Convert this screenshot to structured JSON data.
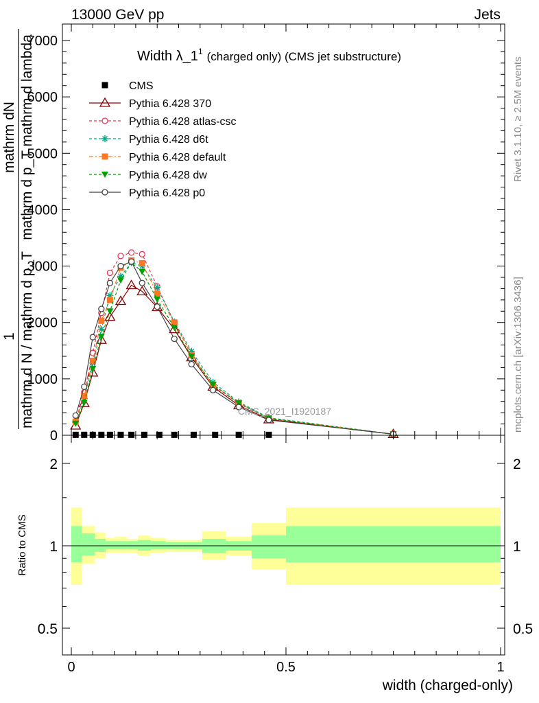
{
  "header": {
    "left": "13000 GeV pp",
    "right": "Jets"
  },
  "side_labels": {
    "rivet": "Rivet 3.1.10, ≥ 2.5M events",
    "mcplots": "mcplots.cern.ch [arXiv:1306.3436]"
  },
  "colors": {
    "ratio_inner_band": "#99ff99",
    "ratio_outer_band": "#ffff99"
  },
  "chart_data": [
    {
      "type": "line",
      "title_main": "Width λ_1",
      "title_sup": "1",
      "title_rest": "(charged only) (CMS jet substructure)",
      "watermark": "CMS_2021_I1920187",
      "ylabel_top_numerator": "mathrm dN",
      "ylabel_top_denominator": "mathrm d p_T mathrm d lambda",
      "ylabel_prefix_numerator": "1",
      "ylabel_prefix_denominator": "mathrm d N / mathrm d p_T",
      "xlim": [
        -0.02,
        1.02
      ],
      "ylim": [
        0,
        7300
      ],
      "yticks": [
        0,
        1000,
        2000,
        3000,
        4000,
        5000,
        6000,
        7000
      ],
      "ytick_labels_visible": [
        "0",
        "1000",
        "2000",
        "3000",
        "4000",
        "5000",
        "6000",
        "7000"
      ],
      "legend_position": "top-left",
      "series": [
        {
          "name": "CMS",
          "color": "#000000",
          "marker": "square-filled",
          "dash": "none",
          "x": [
            0.01,
            0.03,
            0.05,
            0.07,
            0.09,
            0.115,
            0.14,
            0.17,
            0.205,
            0.24,
            0.285,
            0.335,
            0.39,
            0.46
          ],
          "y": [
            8,
            8,
            8,
            8,
            8,
            8,
            8,
            8,
            8,
            8,
            8,
            8,
            8,
            8
          ]
        },
        {
          "name": "Pythia 6.428 370",
          "color": "#8b0000",
          "marker": "triangle-open",
          "dash": "none",
          "x": [
            0.01,
            0.03,
            0.05,
            0.07,
            0.09,
            0.115,
            0.14,
            0.165,
            0.2,
            0.24,
            0.28,
            0.33,
            0.39,
            0.46,
            0.75
          ],
          "y": [
            170,
            570,
            1110,
            1690,
            2100,
            2380,
            2660,
            2550,
            2270,
            1880,
            1380,
            860,
            530,
            280,
            20
          ]
        },
        {
          "name": "Pythia 6.428 atlas-csc",
          "color": "#ee3355",
          "marker": "circle-open",
          "dash": "4,3",
          "x": [
            0.01,
            0.03,
            0.05,
            0.07,
            0.09,
            0.115,
            0.14,
            0.165,
            0.2,
            0.24,
            0.28,
            0.33,
            0.39,
            0.46,
            0.75
          ],
          "y": [
            250,
            760,
            1460,
            2170,
            2880,
            3180,
            3240,
            3210,
            2640,
            2000,
            1440,
            890,
            560,
            300,
            20
          ]
        },
        {
          "name": "Pythia 6.428 d6t",
          "color": "#00aa88",
          "marker": "star",
          "dash": "4,3",
          "x": [
            0.01,
            0.03,
            0.05,
            0.07,
            0.09,
            0.115,
            0.14,
            0.165,
            0.2,
            0.24,
            0.28,
            0.33,
            0.39,
            0.46,
            0.75
          ],
          "y": [
            230,
            650,
            1280,
            1880,
            2480,
            2820,
            3060,
            3000,
            2620,
            2010,
            1490,
            940,
            590,
            310,
            20
          ]
        },
        {
          "name": "Pythia 6.428 default",
          "color": "#ff7722",
          "marker": "square-filled",
          "dash": "6,3,2,3",
          "x": [
            0.01,
            0.03,
            0.05,
            0.07,
            0.09,
            0.115,
            0.14,
            0.165,
            0.2,
            0.24,
            0.28,
            0.33,
            0.39,
            0.46,
            0.75
          ],
          "y": [
            240,
            700,
            1320,
            2030,
            2400,
            2970,
            3100,
            3050,
            2510,
            2000,
            1420,
            900,
            570,
            300,
            20
          ]
        },
        {
          "name": "Pythia 6.428 dw",
          "color": "#00a000",
          "marker": "triangle-down-filled",
          "dash": "4,3",
          "x": [
            0.01,
            0.03,
            0.05,
            0.07,
            0.09,
            0.115,
            0.14,
            0.165,
            0.2,
            0.24,
            0.28,
            0.33,
            0.39,
            0.46,
            0.75
          ],
          "y": [
            210,
            580,
            1180,
            1750,
            2200,
            2750,
            3060,
            2900,
            2410,
            1910,
            1400,
            900,
            570,
            300,
            20
          ]
        },
        {
          "name": "Pythia 6.428 p0",
          "color": "#444444",
          "marker": "circle-open",
          "dash": "none",
          "x": [
            0.01,
            0.03,
            0.05,
            0.07,
            0.09,
            0.115,
            0.14,
            0.165,
            0.2,
            0.24,
            0.28,
            0.33,
            0.39,
            0.46,
            0.75
          ],
          "y": [
            350,
            860,
            1740,
            2240,
            2700,
            3000,
            3080,
            2700,
            2280,
            1710,
            1260,
            800,
            500,
            270,
            20
          ]
        }
      ]
    },
    {
      "type": "area",
      "ylabel": "Ratio to CMS",
      "xlabel": "width (charged-only)",
      "xlim": [
        -0.02,
        1.02
      ],
      "ylim": [
        0.4,
        2.5
      ],
      "log_y": true,
      "yticks": [
        0.5,
        1,
        2
      ],
      "ytick_labels": [
        "0.5",
        "1",
        "2"
      ],
      "xticks": [
        0,
        0.5,
        1
      ],
      "xtick_labels": [
        "0",
        "0.5",
        "1"
      ],
      "reference_line": 1,
      "bins": [
        {
          "lo": 0.0,
          "hi": 0.025,
          "inner": [
            0.87,
            1.18
          ],
          "outer": [
            0.72,
            1.38
          ]
        },
        {
          "lo": 0.025,
          "hi": 0.055,
          "inner": [
            0.92,
            1.11
          ],
          "outer": [
            0.86,
            1.18
          ]
        },
        {
          "lo": 0.055,
          "hi": 0.08,
          "inner": [
            0.95,
            1.06
          ],
          "outer": [
            0.9,
            1.12
          ]
        },
        {
          "lo": 0.08,
          "hi": 0.1,
          "inner": [
            0.97,
            1.04
          ],
          "outer": [
            0.94,
            1.07
          ]
        },
        {
          "lo": 0.1,
          "hi": 0.13,
          "inner": [
            0.97,
            1.04
          ],
          "outer": [
            0.94,
            1.08
          ]
        },
        {
          "lo": 0.13,
          "hi": 0.155,
          "inner": [
            0.97,
            1.04
          ],
          "outer": [
            0.94,
            1.06
          ]
        },
        {
          "lo": 0.155,
          "hi": 0.185,
          "inner": [
            0.96,
            1.05
          ],
          "outer": [
            0.92,
            1.09
          ]
        },
        {
          "lo": 0.185,
          "hi": 0.22,
          "inner": [
            0.97,
            1.04
          ],
          "outer": [
            0.94,
            1.07
          ]
        },
        {
          "lo": 0.22,
          "hi": 0.26,
          "inner": [
            0.97,
            1.03
          ],
          "outer": [
            0.95,
            1.05
          ]
        },
        {
          "lo": 0.26,
          "hi": 0.305,
          "inner": [
            0.97,
            1.03
          ],
          "outer": [
            0.95,
            1.05
          ]
        },
        {
          "lo": 0.305,
          "hi": 0.36,
          "inner": [
            0.94,
            1.06
          ],
          "outer": [
            0.89,
            1.13
          ]
        },
        {
          "lo": 0.36,
          "hi": 0.42,
          "inner": [
            0.96,
            1.04
          ],
          "outer": [
            0.92,
            1.08
          ]
        },
        {
          "lo": 0.42,
          "hi": 0.5,
          "inner": [
            0.9,
            1.09
          ],
          "outer": [
            0.82,
            1.21
          ]
        },
        {
          "lo": 0.5,
          "hi": 1.0,
          "inner": [
            0.87,
            1.18
          ],
          "outer": [
            0.72,
            1.38
          ]
        }
      ]
    }
  ]
}
